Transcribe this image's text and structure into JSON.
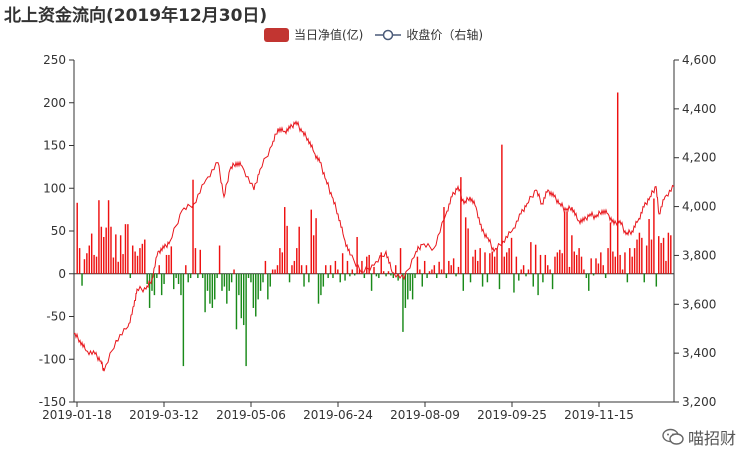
{
  "title": "北上资金流向(2019年12月30日)",
  "watermark": "喵招财",
  "chart_data": {
    "type": "bar+line",
    "title": "北上资金流向(2019年12月30日)",
    "series": [
      {
        "name": "当日净值(亿)",
        "type": "bar",
        "axis": "left",
        "color": "#c23531"
      },
      {
        "name": "收盘价（右轴)",
        "type": "line",
        "axis": "right",
        "color": "#e8151b"
      }
    ],
    "left_axis": {
      "min": -150,
      "max": 250,
      "ticks": [
        -150,
        -100,
        -50,
        0,
        50,
        100,
        150,
        200,
        250
      ]
    },
    "right_axis": {
      "min": 3200,
      "max": 4600,
      "ticks": [
        3200,
        3400,
        3600,
        3800,
        4000,
        4200,
        4400,
        4600
      ],
      "tick_labels": [
        "3,200",
        "3,400",
        "3,600",
        "3,800",
        "4,000",
        "4,200",
        "4,400",
        "4,600"
      ]
    },
    "x_labels": [
      "2019-01-18",
      "2019-03-12",
      "2019-05-06",
      "2019-06-24",
      "2019-08-09",
      "2019-09-25",
      "2019-11-15"
    ],
    "positive_color": "#ee1111",
    "negative_color": "#1a8a1a",
    "net_inflow": [
      83,
      30,
      -14,
      17,
      24,
      33,
      47,
      22,
      20,
      86,
      55,
      43,
      54,
      86,
      55,
      19,
      46,
      14,
      45,
      23,
      58,
      58,
      -5,
      33,
      26,
      21,
      30,
      35,
      40,
      -12,
      -40,
      -20,
      -25,
      -5,
      10,
      -25,
      -12,
      22,
      22,
      32,
      -18,
      -5,
      -12,
      -25,
      -108,
      10,
      -10,
      -5,
      110,
      30,
      -5,
      28,
      -5,
      -45,
      -20,
      -35,
      -40,
      -30,
      -5,
      33,
      -20,
      -15,
      -35,
      -20,
      -10,
      5,
      -65,
      -25,
      -52,
      -60,
      -108,
      -5,
      -10,
      -40,
      -50,
      -30,
      -20,
      -10,
      15,
      -30,
      -15,
      5,
      5,
      10,
      30,
      25,
      78,
      56,
      -10,
      10,
      15,
      30,
      55,
      10,
      -15,
      10,
      -10,
      75,
      45,
      65,
      -35,
      -25,
      -15,
      10,
      -5,
      10,
      -5,
      15,
      5,
      -10,
      24,
      -8,
      15,
      -3,
      5,
      -2,
      43,
      5,
      15,
      -5,
      20,
      22,
      -20,
      8,
      -3,
      -5,
      25,
      3,
      -3,
      3,
      -2,
      -5,
      10,
      -8,
      30,
      -68,
      -40,
      -30,
      -20,
      -30,
      -5,
      20,
      5,
      -15,
      15,
      -5,
      3,
      5,
      10,
      -5,
      14,
      5,
      78,
      -5,
      15,
      10,
      18,
      -3,
      8,
      113,
      -20,
      66,
      53,
      -10,
      20,
      28,
      15,
      30,
      -15,
      25,
      -10,
      24,
      26,
      20,
      30,
      -18,
      151,
      20,
      25,
      30,
      42,
      -22,
      20,
      -8,
      5,
      10,
      -3,
      5,
      37,
      -15,
      34,
      -25,
      22,
      -10,
      22,
      10,
      5,
      -18,
      20,
      25,
      28,
      24,
      73,
      73,
      8,
      45,
      26,
      22,
      30,
      20,
      5,
      -5,
      -20,
      18,
      -2,
      18,
      12,
      25,
      10,
      -5,
      30,
      60,
      26,
      20,
      212,
      22,
      5,
      25,
      -10,
      30,
      20,
      30,
      40,
      48,
      42,
      -10,
      33,
      64,
      40,
      88,
      -15,
      44,
      36,
      42,
      15,
      48,
      45
    ]
  }
}
